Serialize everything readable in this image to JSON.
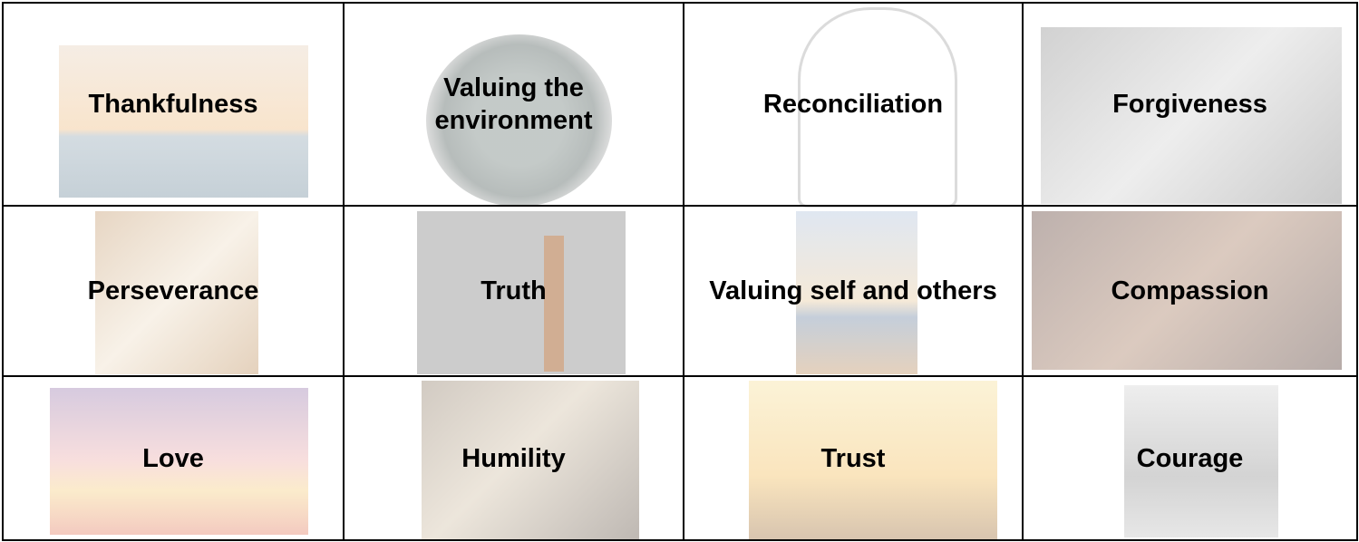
{
  "table": {
    "rows": [
      [
        "Thankfulness",
        "Valuing the environment",
        "Reconciliation",
        "Forgiveness"
      ],
      [
        "Perseverance",
        "Truth",
        "Valuing self and others",
        "Compassion"
      ],
      [
        "Love",
        "Humility",
        "Trust",
        "Courage"
      ]
    ]
  }
}
